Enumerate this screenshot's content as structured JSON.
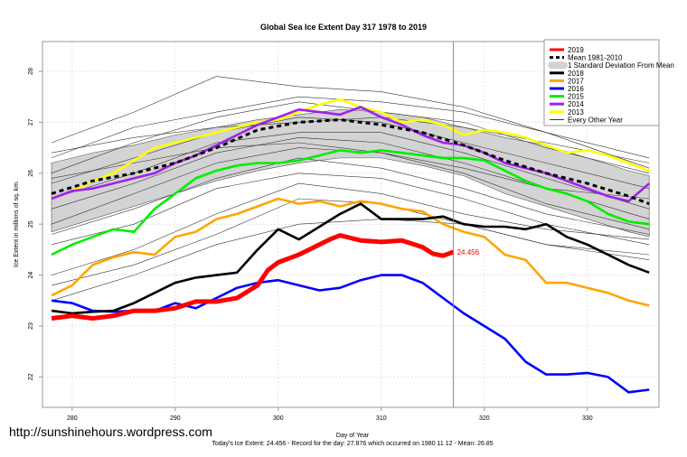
{
  "watermark": "http://sunshinehours.wordpress.com",
  "chart_data": {
    "type": "line",
    "title": "Global Sea Ice Extent Day 317 1978 to 2019",
    "xlabel": "Day of Year",
    "ylabel": "Ice Extent in millions of sq. km.",
    "subtitle": "Today's Ice Extent: 24.456  - Record for the day: 27.876 which occurred on 1980 11 12  - Mean: 26.85",
    "xlim": [
      277,
      337
    ],
    "ylim": [
      21.4,
      28.6
    ],
    "xticks": [
      280,
      290,
      300,
      310,
      320,
      330
    ],
    "yticks": [
      22,
      23,
      24,
      25,
      26,
      27,
      28
    ],
    "grid": true,
    "current_day_marker": 317,
    "current_value_label": "24.456",
    "legend_position": "top-right",
    "legend": [
      {
        "label": "2019",
        "color": "#ff0000",
        "style": "thick"
      },
      {
        "label": "Mean 1981-2010",
        "color": "#000000",
        "style": "dashed"
      },
      {
        "label": "1 Standard Deviation From Mean",
        "color": "#d3d3d3",
        "style": "band"
      },
      {
        "label": "2018",
        "color": "#000000",
        "style": "solid"
      },
      {
        "label": "2017",
        "color": "#ffa500",
        "style": "solid"
      },
      {
        "label": "2016",
        "color": "#0000ff",
        "style": "solid"
      },
      {
        "label": "2015",
        "color": "#00ee00",
        "style": "solid"
      },
      {
        "label": "2014",
        "color": "#a020f0",
        "style": "solid"
      },
      {
        "label": "2013",
        "color": "#ffff00",
        "style": "solid"
      },
      {
        "label": "Every Other Year",
        "color": "#000000",
        "style": "thin"
      }
    ],
    "days_step4": [
      278,
      282,
      286,
      290,
      294,
      298,
      302,
      306,
      310,
      314,
      318,
      322,
      326,
      330,
      334,
      336
    ],
    "band": {
      "upper": [
        26.2,
        26.4,
        26.55,
        26.75,
        26.9,
        27.05,
        27.15,
        27.25,
        27.2,
        27.1,
        26.9,
        26.7,
        26.55,
        26.3,
        26.05,
        25.95
      ],
      "lower": [
        24.85,
        25.1,
        25.35,
        25.6,
        25.85,
        26.05,
        26.2,
        26.3,
        26.3,
        26.15,
        25.95,
        25.6,
        25.35,
        25.1,
        24.85,
        24.75
      ]
    },
    "mean": {
      "days": [
        278,
        282,
        286,
        290,
        294,
        298,
        302,
        306,
        310,
        314,
        318,
        322,
        326,
        330,
        334,
        336
      ],
      "values": [
        25.6,
        25.85,
        26.0,
        26.2,
        26.5,
        26.85,
        27.0,
        27.05,
        26.95,
        26.8,
        26.55,
        26.25,
        26.0,
        25.8,
        25.55,
        25.4
      ]
    },
    "series": [
      {
        "name": "2013",
        "color": "#ffff00",
        "days": [
          278,
          280,
          282,
          284,
          286,
          288,
          290,
          292,
          294,
          296,
          298,
          300,
          302,
          304,
          306,
          308,
          310,
          312,
          314,
          316,
          318,
          320,
          322,
          324,
          326,
          328,
          330,
          332,
          334,
          336
        ],
        "values": [
          25.5,
          25.65,
          25.85,
          26.0,
          26.25,
          26.5,
          26.6,
          26.7,
          26.8,
          26.9,
          27.0,
          27.05,
          27.2,
          27.35,
          27.45,
          27.3,
          27.2,
          27.0,
          27.05,
          26.95,
          26.75,
          26.85,
          26.8,
          26.7,
          26.55,
          26.4,
          26.45,
          26.35,
          26.2,
          26.05
        ]
      },
      {
        "name": "2014",
        "color": "#a020f0",
        "days": [
          278,
          280,
          282,
          284,
          286,
          288,
          290,
          292,
          294,
          296,
          298,
          300,
          302,
          304,
          306,
          308,
          310,
          312,
          314,
          316,
          318,
          320,
          322,
          324,
          326,
          328,
          330,
          332,
          334,
          336
        ],
        "values": [
          25.5,
          25.65,
          25.7,
          25.8,
          25.9,
          26.0,
          26.2,
          26.35,
          26.55,
          26.75,
          26.95,
          27.1,
          27.25,
          27.2,
          27.15,
          27.3,
          27.1,
          26.95,
          26.75,
          26.6,
          26.55,
          26.4,
          26.2,
          26.1,
          26.0,
          25.85,
          25.7,
          25.55,
          25.45,
          25.8
        ]
      },
      {
        "name": "2015",
        "color": "#00ee00",
        "days": [
          278,
          280,
          282,
          284,
          286,
          288,
          290,
          292,
          294,
          296,
          298,
          300,
          302,
          304,
          306,
          308,
          310,
          312,
          314,
          316,
          318,
          320,
          322,
          324,
          326,
          328,
          330,
          332,
          334,
          336
        ],
        "values": [
          24.4,
          24.6,
          24.75,
          24.9,
          24.85,
          25.3,
          25.6,
          25.9,
          26.05,
          26.15,
          26.2,
          26.2,
          26.25,
          26.35,
          26.45,
          26.4,
          26.45,
          26.4,
          26.35,
          26.3,
          26.3,
          26.25,
          26.05,
          25.85,
          25.7,
          25.6,
          25.45,
          25.2,
          25.05,
          25.0
        ]
      },
      {
        "name": "2016",
        "color": "#0000ff",
        "days": [
          278,
          280,
          282,
          284,
          286,
          288,
          290,
          292,
          294,
          296,
          298,
          300,
          302,
          304,
          306,
          308,
          310,
          312,
          314,
          316,
          318,
          320,
          322,
          324,
          326,
          328,
          330,
          332,
          334,
          336
        ],
        "values": [
          23.5,
          23.45,
          23.3,
          23.28,
          23.3,
          23.3,
          23.45,
          23.35,
          23.55,
          23.75,
          23.85,
          23.9,
          23.8,
          23.7,
          23.75,
          23.9,
          24.0,
          24.0,
          23.85,
          23.55,
          23.25,
          23.0,
          22.75,
          22.3,
          22.05,
          22.05,
          22.08,
          22.0,
          21.7,
          21.75
        ]
      },
      {
        "name": "2017",
        "color": "#ffa500",
        "days": [
          278,
          280,
          282,
          284,
          286,
          288,
          290,
          292,
          294,
          296,
          298,
          300,
          302,
          304,
          306,
          308,
          310,
          312,
          314,
          316,
          318,
          320,
          322,
          324,
          326,
          328,
          330,
          332,
          334,
          336
        ],
        "values": [
          23.6,
          23.8,
          24.2,
          24.35,
          24.45,
          24.4,
          24.75,
          24.85,
          25.1,
          25.2,
          25.35,
          25.5,
          25.4,
          25.45,
          25.35,
          25.45,
          25.4,
          25.3,
          25.25,
          25.0,
          24.85,
          24.75,
          24.4,
          24.3,
          23.85,
          23.85,
          23.75,
          23.65,
          23.5,
          23.4
        ]
      },
      {
        "name": "2018",
        "color": "#000000",
        "days": [
          278,
          280,
          282,
          284,
          286,
          288,
          290,
          292,
          294,
          296,
          298,
          300,
          302,
          304,
          306,
          308,
          310,
          312,
          314,
          316,
          318,
          320,
          322,
          324,
          326,
          328,
          330,
          332,
          334,
          336
        ],
        "values": [
          23.3,
          23.25,
          23.28,
          23.3,
          23.45,
          23.65,
          23.85,
          23.95,
          24.0,
          24.05,
          24.5,
          24.9,
          24.7,
          24.95,
          25.2,
          25.4,
          25.1,
          25.1,
          25.1,
          25.15,
          25.0,
          24.95,
          24.95,
          24.9,
          25.0,
          24.75,
          24.6,
          24.4,
          24.2,
          24.05
        ]
      },
      {
        "name": "2019",
        "color": "#ff0000",
        "days": [
          278,
          280,
          282,
          284,
          286,
          288,
          290,
          292,
          294,
          296,
          298,
          299,
          300,
          302,
          304,
          305,
          306,
          308,
          310,
          312,
          314,
          315,
          316,
          317
        ],
        "values": [
          23.15,
          23.2,
          23.15,
          23.2,
          23.3,
          23.3,
          23.35,
          23.48,
          23.48,
          23.55,
          23.8,
          24.1,
          24.25,
          24.4,
          24.6,
          24.7,
          24.78,
          24.68,
          24.65,
          24.68,
          24.55,
          24.42,
          24.38,
          24.456
        ]
      }
    ],
    "every_other_year": [
      {
        "days": [
          278,
          286,
          294,
          302,
          310,
          318,
          326,
          336
        ],
        "values": [
          26.6,
          27.2,
          27.9,
          27.7,
          27.6,
          27.3,
          26.8,
          26.1
        ]
      },
      {
        "days": [
          278,
          286,
          294,
          302,
          310,
          318,
          326,
          336
        ],
        "values": [
          26.3,
          26.9,
          27.2,
          27.5,
          27.4,
          27.2,
          26.8,
          26.3
        ]
      },
      {
        "days": [
          278,
          286,
          294,
          302,
          310,
          318,
          326,
          336
        ],
        "values": [
          26.0,
          26.6,
          27.1,
          27.4,
          27.2,
          27.0,
          26.5,
          26.0
        ]
      },
      {
        "days": [
          278,
          286,
          294,
          302,
          310,
          318,
          326,
          336
        ],
        "values": [
          25.8,
          26.3,
          26.8,
          27.1,
          27.0,
          26.6,
          26.2,
          25.7
        ]
      },
      {
        "days": [
          278,
          286,
          294,
          302,
          310,
          318,
          326,
          336
        ],
        "values": [
          25.5,
          26.0,
          26.6,
          26.8,
          26.8,
          26.4,
          25.9,
          25.3
        ]
      },
      {
        "days": [
          278,
          286,
          294,
          302,
          310,
          318,
          326,
          336
        ],
        "values": [
          25.3,
          25.8,
          26.4,
          26.7,
          26.6,
          26.2,
          25.7,
          25.1
        ]
      },
      {
        "days": [
          278,
          286,
          294,
          302,
          310,
          318,
          326,
          336
        ],
        "values": [
          25.0,
          25.6,
          26.2,
          26.5,
          26.4,
          26.0,
          25.4,
          24.9
        ]
      },
      {
        "days": [
          278,
          286,
          294,
          302,
          310,
          318,
          326,
          336
        ],
        "values": [
          24.8,
          25.3,
          25.9,
          26.3,
          26.1,
          25.7,
          25.2,
          24.8
        ]
      },
      {
        "days": [
          278,
          286,
          294,
          302,
          310,
          318,
          326,
          336
        ],
        "values": [
          24.6,
          25.0,
          25.7,
          26.0,
          25.9,
          25.5,
          25.0,
          24.6
        ]
      },
      {
        "days": [
          278,
          286,
          294,
          302,
          310,
          318,
          326,
          336
        ],
        "values": [
          24.0,
          24.5,
          25.2,
          25.8,
          25.6,
          25.2,
          24.9,
          24.7
        ]
      },
      {
        "days": [
          278,
          286,
          294,
          302,
          310,
          318,
          326,
          336
        ],
        "values": [
          23.8,
          24.2,
          24.8,
          25.5,
          25.4,
          25.0,
          24.6,
          24.3
        ]
      },
      {
        "days": [
          278,
          286,
          294,
          302,
          310,
          318,
          326,
          336
        ],
        "values": [
          23.5,
          24.0,
          24.6,
          25.0,
          25.1,
          25.0,
          24.6,
          24.4
        ]
      },
      {
        "days": [
          278,
          286,
          294,
          302,
          310,
          318,
          326,
          336
        ],
        "values": [
          26.4,
          26.7,
          26.9,
          27.0,
          27.1,
          26.9,
          26.6,
          26.2
        ]
      },
      {
        "days": [
          278,
          286,
          294,
          302,
          310,
          318,
          326,
          336
        ],
        "values": [
          25.9,
          26.2,
          26.5,
          26.6,
          26.4,
          26.1,
          25.7,
          25.5
        ]
      }
    ]
  }
}
